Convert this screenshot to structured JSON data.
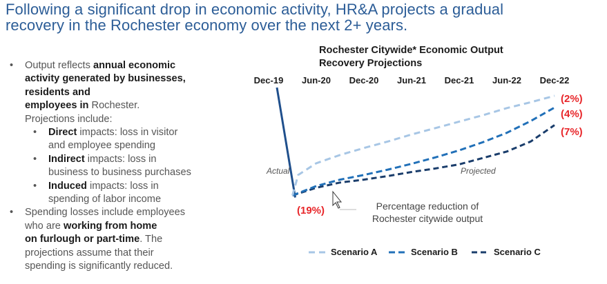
{
  "headline": {
    "line1": "Following a significant drop in economic activity, HR&A projects a gradual",
    "line2": "recovery in the Rochester economy over the next 2+ years."
  },
  "bullets": {
    "b1_pre": "Output reflects ",
    "b1_bold1": "annual economic",
    "b1_bold2": "activity generated by businesses,",
    "b1_bold3": "residents and",
    "b1_bold4": "employees in",
    "b1_post": " Rochester.",
    "b1_tail": "Projections include:",
    "sub1_bold": "Direct",
    "sub1_text": " impacts: loss in visitor",
    "sub1_text2": "and employee spending",
    "sub2_bold": "Indirect",
    "sub2_text": " impacts: loss in",
    "sub2_text2": "business to business purchases",
    "sub3_bold": "Induced",
    "sub3_text": " impacts: loss in",
    "sub3_text2": "spending of labor income",
    "b2_line1": "Spending losses include employees",
    "b2_pre": "who are ",
    "b2_bold1": "working from home",
    "b2_bold2": "on furlough or part-time",
    "b2_post": ". The",
    "b2_line4": "projections assume that their",
    "b2_line5": "spending is significantly reduced.",
    "dot": "•"
  },
  "chart_data": {
    "type": "line",
    "title_line1": "Rochester Citywide* Economic Output",
    "title_line2": "Recovery Projections",
    "categories": [
      "Dec-19",
      "Jun-20",
      "Dec-20",
      "Jun-21",
      "Dec-21",
      "Jun-22",
      "Dec-22"
    ],
    "actual": {
      "label": "Actual",
      "points": [
        [
          "Dec-19",
          0
        ],
        [
          "Jun-20",
          -19
        ]
      ]
    },
    "projected_label": "Projected",
    "trough_label": "(19%)",
    "trough_note_line1": "Percentage reduction of",
    "trough_note_line2": "Rochester citywide output",
    "ylim": [
      -20,
      0
    ],
    "series": [
      {
        "name": "Scenario A",
        "end_label": "(2%)",
        "color": "#a7c6e5",
        "x": [
          0.25,
          0.31,
          0.5,
          0.75,
          1.0,
          1.25,
          1.5,
          1.75,
          2.0,
          2.25,
          2.5,
          2.75,
          3.0
        ],
        "y": [
          -19,
          -15.5,
          -13.5,
          -12.1,
          -10.9,
          -9.8,
          -8.6,
          -7.5,
          -6.4,
          -5.3,
          -4.1,
          -3.1,
          -2
        ]
      },
      {
        "name": "Scenario B",
        "end_label": "(4%)",
        "color": "#2170b8",
        "x": [
          0.25,
          0.5,
          0.75,
          1.0,
          1.25,
          1.5,
          1.75,
          2.0,
          2.25,
          2.5,
          2.75,
          3.0
        ],
        "y": [
          -19,
          -17.4,
          -16.3,
          -15.5,
          -14.6,
          -13.6,
          -12.5,
          -11.3,
          -9.9,
          -8.3,
          -6.3,
          -4
        ]
      },
      {
        "name": "Scenario C",
        "end_label": "(7%)",
        "color": "#1a3d6b",
        "x": [
          0.25,
          0.5,
          0.75,
          1.0,
          1.25,
          1.5,
          1.75,
          2.0,
          2.25,
          2.5,
          2.75,
          3.0
        ],
        "y": [
          -19,
          -17.7,
          -16.8,
          -16.3,
          -15.7,
          -15.0,
          -14.4,
          -13.7,
          -12.6,
          -11.5,
          -9.8,
          -7
        ]
      }
    ],
    "actual_color": "#1f4f8c",
    "label_color": "#e8262a",
    "legend_position": "bottom"
  }
}
